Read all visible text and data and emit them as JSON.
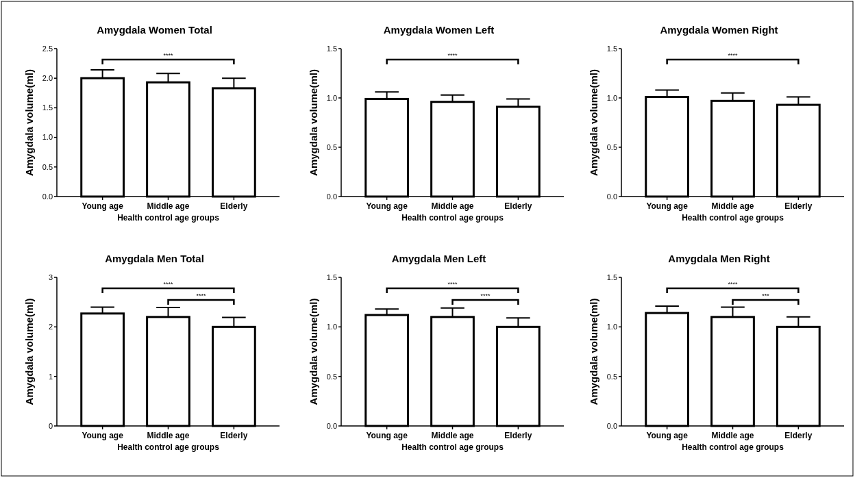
{
  "chart_data": [
    {
      "type": "bar",
      "title": "Amygdala Women Total",
      "xlabel": "Health control age groups",
      "ylabel": "Amygdala volume(ml)",
      "categories": [
        "Young age",
        "Middle age",
        "Elderly"
      ],
      "values": [
        2.0,
        1.93,
        1.83
      ],
      "errors": [
        [
          2.0,
          2.14
        ],
        [
          1.93,
          2.08
        ],
        [
          1.83,
          2.0
        ]
      ],
      "color": "#ffffff",
      "ylim": [
        0,
        2.5
      ],
      "yticks": [
        {
          "value": 0,
          "label": "0.0"
        },
        {
          "value": 0.5,
          "label": "0.5"
        },
        {
          "value": 1,
          "label": "1.0"
        },
        {
          "value": 1.5,
          "label": "1.5"
        },
        {
          "value": 2,
          "label": "2.0"
        },
        {
          "value": 2.5,
          "label": "2.5"
        }
      ],
      "annotations": [
        "****"
      ]
    },
    {
      "type": "bar",
      "title": "Amygdala Women Left",
      "xlabel": "Health control age groups",
      "ylabel": "Amygdala volume(ml)",
      "categories": [
        "Young age",
        "Middle age",
        "Elderly"
      ],
      "values": [
        0.99,
        0.96,
        0.91
      ],
      "errors": [
        [
          0.99,
          1.06
        ],
        [
          0.96,
          1.03
        ],
        [
          0.91,
          0.99
        ]
      ],
      "color": "#ffffff",
      "ylim": [
        0,
        1.5
      ],
      "yticks": [
        {
          "value": 0,
          "label": "0.0"
        },
        {
          "value": 0.5,
          "label": "0.5"
        },
        {
          "value": 1,
          "label": "1.0"
        },
        {
          "value": 1.5,
          "label": "1.5"
        }
      ],
      "annotations": [
        "****"
      ]
    },
    {
      "type": "bar",
      "title": "Amygdala Women Right",
      "xlabel": "Health control age groups",
      "ylabel": "Amygdala volume(ml)",
      "categories": [
        "Young age",
        "Middle age",
        "Elderly"
      ],
      "values": [
        1.01,
        0.97,
        0.93
      ],
      "errors": [
        [
          1.01,
          1.08
        ],
        [
          0.97,
          1.05
        ],
        [
          0.93,
          1.01
        ]
      ],
      "color": "#ffffff",
      "ylim": [
        0,
        1.5
      ],
      "yticks": [
        {
          "value": 0,
          "label": "0.0"
        },
        {
          "value": 0.5,
          "label": "0.5"
        },
        {
          "value": 1,
          "label": "1.0"
        },
        {
          "value": 1.5,
          "label": "1.5"
        }
      ],
      "annotations": [
        "****"
      ]
    },
    {
      "type": "bar",
      "title": "Amygdala Men Total",
      "xlabel": "Health control age groups",
      "ylabel": "Amygdala volume(ml)",
      "categories": [
        "Young age",
        "Middle age",
        "Elderly"
      ],
      "values": [
        2.27,
        2.2,
        2.0
      ],
      "errors": [
        [
          2.27,
          2.4
        ],
        [
          2.2,
          2.39
        ],
        [
          2.0,
          2.19
        ]
      ],
      "color": "#ffffff",
      "ylim": [
        0,
        3
      ],
      "yticks": [
        0,
        1,
        2,
        3
      ],
      "annotations": [
        "****",
        "****"
      ]
    },
    {
      "type": "bar",
      "title": "Amygdala Men Left",
      "xlabel": "Health control age groups",
      "ylabel": "Amygdala volume(ml)",
      "categories": [
        "Young age",
        "Middle age",
        "Elderly"
      ],
      "values": [
        1.12,
        1.1,
        1.0
      ],
      "errors": [
        [
          1.12,
          1.18
        ],
        [
          1.1,
          1.19
        ],
        [
          1.0,
          1.09
        ]
      ],
      "color": "#ffffff",
      "ylim": [
        0,
        1.5
      ],
      "yticks": [
        {
          "value": 0,
          "label": "0.0"
        },
        {
          "value": 0.5,
          "label": "0.5"
        },
        {
          "value": 1,
          "label": "1.0"
        },
        {
          "value": 1.5,
          "label": "1.5"
        }
      ],
      "annotations": [
        "****",
        "****"
      ]
    },
    {
      "type": "bar",
      "title": "Amygdala Men Right",
      "xlabel": "Health control age groups",
      "ylabel": "Amygdala volume(ml)",
      "categories": [
        "Young age",
        "Middle age",
        "Elderly"
      ],
      "values": [
        1.14,
        1.1,
        1.0
      ],
      "errors": [
        [
          1.14,
          1.21
        ],
        [
          1.1,
          1.2
        ],
        [
          1.0,
          1.1
        ]
      ],
      "color": "#ffffff",
      "ylim": [
        0,
        1.5
      ],
      "yticks": [
        {
          "value": 0,
          "label": "0.0"
        },
        {
          "value": 0.5,
          "label": "0.5"
        },
        {
          "value": 1,
          "label": "1.0"
        },
        {
          "value": 1.5,
          "label": "1.5"
        }
      ],
      "annotations": [
        "****",
        "***"
      ]
    }
  ]
}
